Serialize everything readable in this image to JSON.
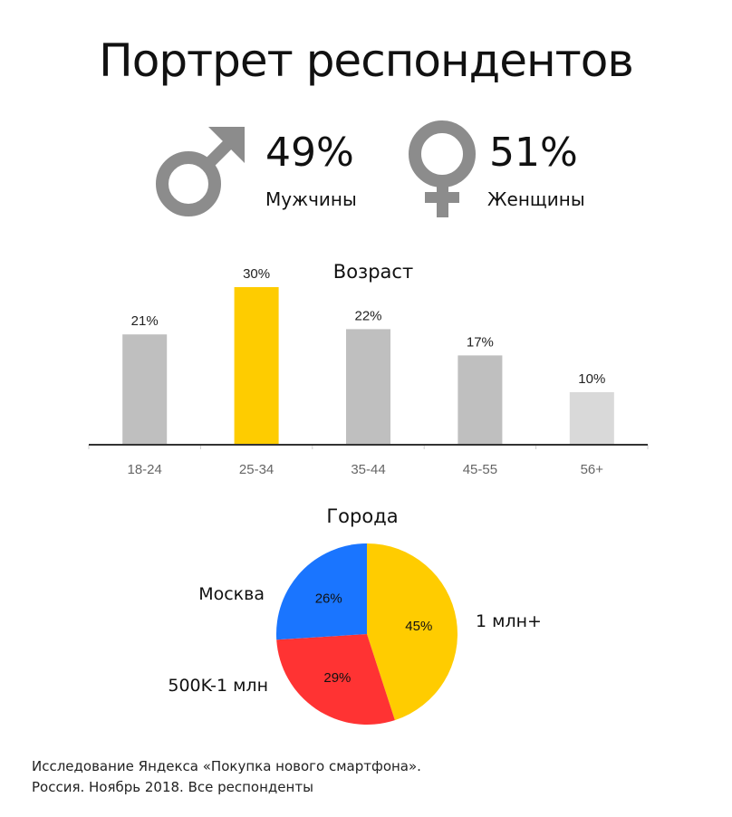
{
  "title": "Портрет респондентов",
  "gender": {
    "male": {
      "percent": "49%",
      "label": "Мужчины",
      "icon": "male-symbol-icon"
    },
    "female": {
      "percent": "51%",
      "label": "Женщины",
      "icon": "female-symbol-icon"
    },
    "icon_color": "#8c8c8c"
  },
  "chart_data": [
    {
      "type": "bar",
      "title": "Возраст",
      "categories": [
        "18-24",
        "25-34",
        "35-44",
        "45-55",
        "56+"
      ],
      "values": [
        21,
        30,
        22,
        17,
        10
      ],
      "data_labels": [
        "21%",
        "30%",
        "22%",
        "17%",
        "10%"
      ],
      "colors": [
        "#bfbfbf",
        "#fecc00",
        "#bfbfbf",
        "#bfbfbf",
        "#d9d9d9"
      ],
      "ylim": [
        0,
        30
      ],
      "grid": false
    },
    {
      "type": "pie",
      "title": "Города",
      "categories": [
        "1 млн+",
        "500K-1 млн",
        "Москва"
      ],
      "values": [
        45,
        29,
        26
      ],
      "data_labels": [
        "45%",
        "29%",
        "26%"
      ],
      "colors": [
        "#ffcc00",
        "#ff3333",
        "#1a75ff"
      ]
    }
  ],
  "footer": {
    "line1": "Исследование Яндекса «Покупка нового смартфона».",
    "line2": "Россия. Ноябрь 2018. Все респонденты"
  }
}
